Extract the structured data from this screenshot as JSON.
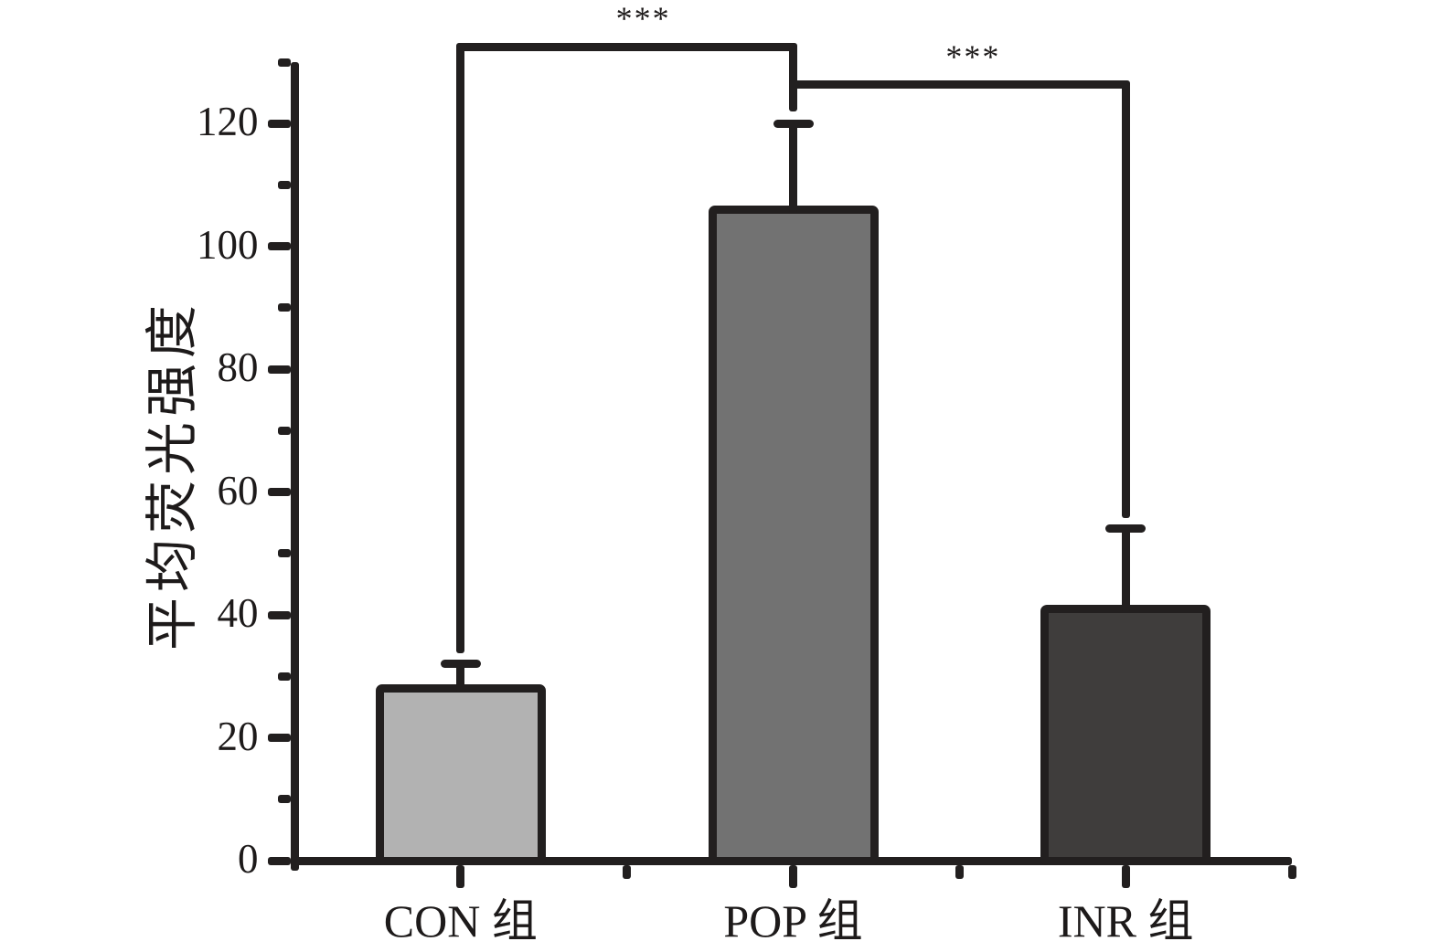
{
  "chart_data": {
    "type": "bar",
    "title": "",
    "xlabel": "",
    "ylabel": "平均荧光强度",
    "categories": [
      "CON 组",
      "POP 组",
      "INR 组"
    ],
    "values": [
      28,
      106,
      41
    ],
    "upper_errors": [
      4,
      14,
      13
    ],
    "error_cap_values": [
      32,
      120,
      54
    ],
    "bar_colors": [
      "#b2b2b2",
      "#727272",
      "#3f3d3c"
    ],
    "ylim": [
      0,
      130
    ],
    "yticks_major": [
      0,
      20,
      40,
      60,
      80,
      100,
      120
    ],
    "yticks_minor": [
      10,
      30,
      50,
      70,
      90,
      110,
      130
    ],
    "grid": false,
    "legend": "none",
    "line_color": "#221f1f",
    "background_color": "#ffffff",
    "significance": [
      {
        "groups": [
          "CON 组",
          "POP 组"
        ],
        "label": "***"
      },
      {
        "groups": [
          "POP 组",
          "INR 组"
        ],
        "label": "***"
      }
    ]
  }
}
